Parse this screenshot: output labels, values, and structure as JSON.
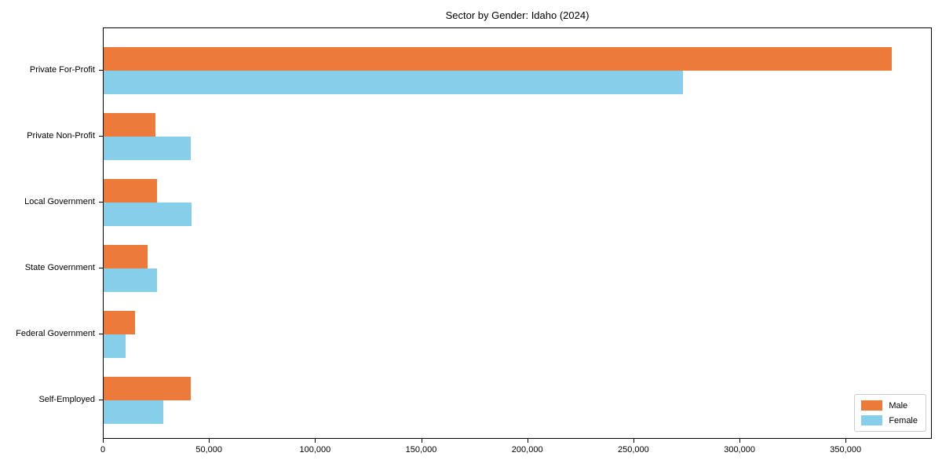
{
  "chart_data": {
    "type": "bar",
    "orientation": "horizontal",
    "title": "Sector by Gender: Idaho (2024)",
    "categories": [
      "Private For-Profit",
      "Private Non-Profit",
      "Local Government",
      "State Government",
      "Federal Government",
      "Self-Employed"
    ],
    "series": [
      {
        "name": "Male",
        "color": "#EB7A3B",
        "values": [
          371500,
          24500,
          25200,
          20700,
          14800,
          41000
        ]
      },
      {
        "name": "Female",
        "color": "#87CEEB",
        "values": [
          273000,
          41000,
          41500,
          25200,
          10400,
          28200
        ]
      }
    ],
    "xlabel": "",
    "ylabel": "",
    "xlim": [
      0,
      390600
    ],
    "x_ticks": [
      0,
      50000,
      100000,
      150000,
      200000,
      250000,
      300000,
      350000
    ],
    "x_tick_labels": [
      "0",
      "50,000",
      "100,000",
      "150,000",
      "200,000",
      "250,000",
      "300,000",
      "350,000"
    ],
    "grid": false,
    "legend": {
      "position": "lower right",
      "entries": [
        "Male",
        "Female"
      ]
    },
    "axis_color": "#000000",
    "text_color": "#000000",
    "background": "#FFFFFF"
  }
}
